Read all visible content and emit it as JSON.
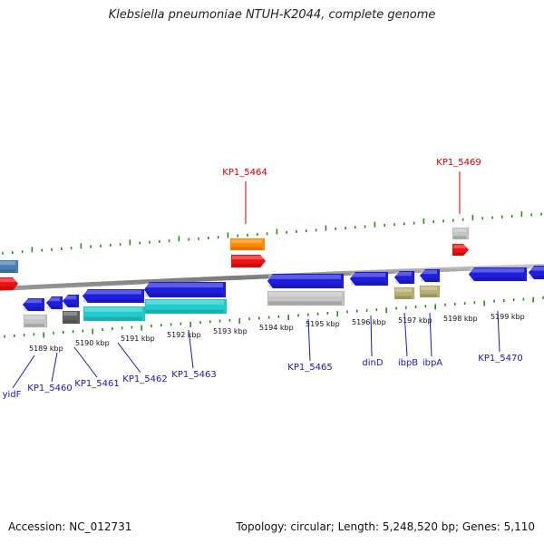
{
  "title": "Klebsiella pneumoniae NTUH-K2044, complete genome",
  "footer": {
    "accession": "Accession: NC_012731",
    "topology": "Topology: circular; Length: 5,248,520 bp; Genes: 5,110"
  },
  "colors": {
    "backbone": "#888888",
    "tick": "#2a8a1a",
    "label_red": "#cc0000",
    "label_blue": "#1a1aaa",
    "gene_blue": "#1e1edc",
    "gene_red": "#ee1111",
    "gene_orange": "#ff8c00",
    "gene_cyan": "#22cccc",
    "gene_grey": "#c4c4c4",
    "gene_dark": "#606060",
    "gene_olive": "#b8b070",
    "gene_steel": "#4a7fb5"
  },
  "kbp_ticks": [
    {
      "label": "5189 kbp"
    },
    {
      "label": "5190 kbp"
    },
    {
      "label": "5191 kbp"
    },
    {
      "label": "5192 kbp"
    },
    {
      "label": "5193 kbp"
    },
    {
      "label": "5194 kbp"
    },
    {
      "label": "5195 kbp"
    },
    {
      "label": "5196 kbp"
    },
    {
      "label": "5197 kbp"
    },
    {
      "label": "5198 kbp"
    },
    {
      "label": "5199 kbp"
    }
  ],
  "gene_labels_top": [
    {
      "label": "KP1_5464"
    },
    {
      "label": "KP1_5469"
    }
  ],
  "gene_labels_bottom": [
    {
      "label": "yidF"
    },
    {
      "label": "KP1_5460"
    },
    {
      "label": "KP1_5461"
    },
    {
      "label": "KP1_5462"
    },
    {
      "label": "KP1_5463"
    },
    {
      "label": "KP1_5465"
    },
    {
      "label": "dinD"
    },
    {
      "label": "ibpB"
    },
    {
      "label": "ibpA"
    },
    {
      "label": "KP1_5470"
    }
  ]
}
